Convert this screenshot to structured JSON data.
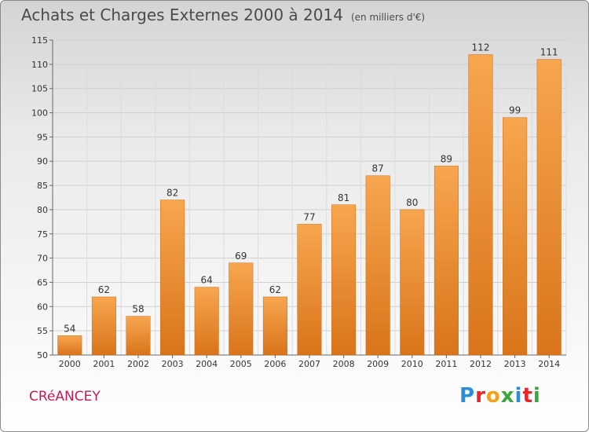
{
  "title": "Achats et Charges Externes 2000 à 2014",
  "unit_note": "(en milliers d'€)",
  "town": "CRéANCEY",
  "logo": {
    "letters": [
      {
        "ch": "P",
        "color": "#2a8fd6"
      },
      {
        "ch": "r",
        "color": "#e5262b"
      },
      {
        "ch": "o",
        "color": "#f4a21c"
      },
      {
        "ch": "x",
        "color": "#3aa838"
      },
      {
        "ch": "i",
        "color": "#2a8fd6"
      },
      {
        "ch": "t",
        "color": "#e5262b"
      },
      {
        "ch": "i",
        "color": "#3aa838"
      }
    ]
  },
  "colors": {
    "bar_top": "#f7a64f",
    "bar_bottom": "#d9741a",
    "bar_edge": "#c96a14",
    "town": "#c71a55"
  },
  "chart_data": {
    "type": "bar",
    "categories": [
      "2000",
      "2001",
      "2002",
      "2003",
      "2004",
      "2005",
      "2006",
      "2007",
      "2008",
      "2009",
      "2010",
      "2011",
      "2012",
      "2013",
      "2014"
    ],
    "values": [
      54,
      62,
      58,
      82,
      64,
      69,
      62,
      77,
      81,
      87,
      80,
      89,
      112,
      99,
      111
    ],
    "ylim": [
      50,
      115
    ],
    "yticks": [
      50,
      55,
      60,
      65,
      70,
      75,
      80,
      85,
      90,
      95,
      100,
      105,
      110,
      115
    ],
    "grid": true,
    "title": "Achats et Charges Externes 2000 à 2014",
    "xlabel": "",
    "ylabel": ""
  }
}
